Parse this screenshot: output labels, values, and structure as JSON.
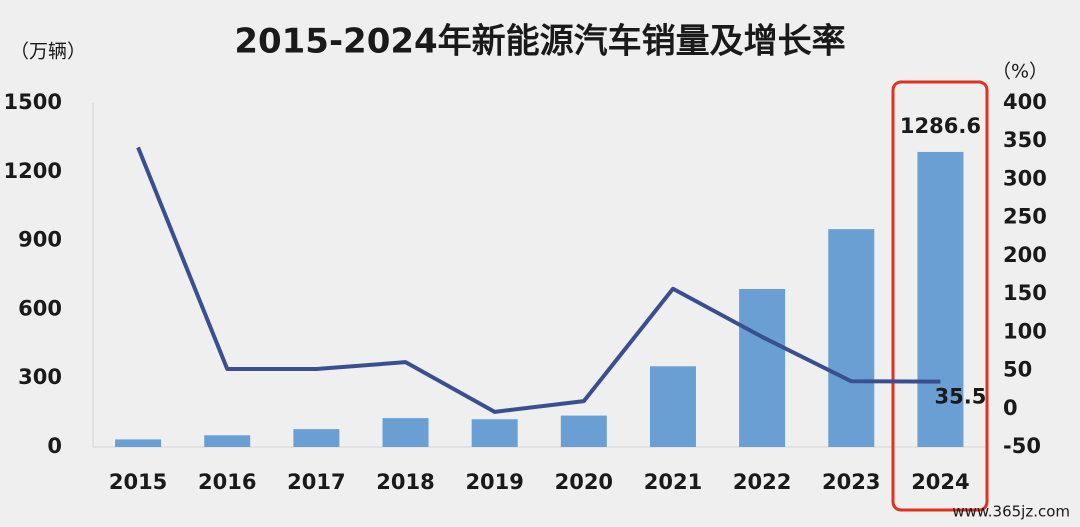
{
  "chart_data": {
    "type": "bar-line",
    "title": "2015-2024年新能源汽车销量及增长率",
    "y_label": "（万辆）",
    "y2_label": "（%）",
    "categories": [
      "2015",
      "2016",
      "2017",
      "2018",
      "2019",
      "2020",
      "2021",
      "2022",
      "2023",
      "2024"
    ],
    "series": [
      {
        "name": "销量",
        "type": "bar",
        "color": "#6a9fd3",
        "values": [
          33,
          51,
          78,
          126,
          121,
          137,
          352,
          689,
          950,
          1286.6
        ],
        "value_labels": [
          null,
          null,
          null,
          null,
          null,
          null,
          null,
          null,
          null,
          "1286.6"
        ]
      },
      {
        "name": "增长率",
        "type": "line",
        "axis": "y2",
        "color": "#3a4f8f",
        "values": [
          342,
          52,
          52,
          61,
          -4,
          10,
          157,
          94,
          36,
          35.5
        ],
        "value_labels": [
          null,
          null,
          null,
          null,
          null,
          null,
          null,
          null,
          null,
          "35.5"
        ]
      }
    ],
    "ylim": [
      0,
      1500
    ],
    "yticks": [
      0,
      300,
      600,
      900,
      1200,
      1500
    ],
    "y2lim": [
      -50,
      400
    ],
    "y2ticks": [
      -50,
      0,
      50,
      100,
      150,
      200,
      250,
      300,
      350,
      400
    ],
    "watermark": "www.365jz.com"
  }
}
